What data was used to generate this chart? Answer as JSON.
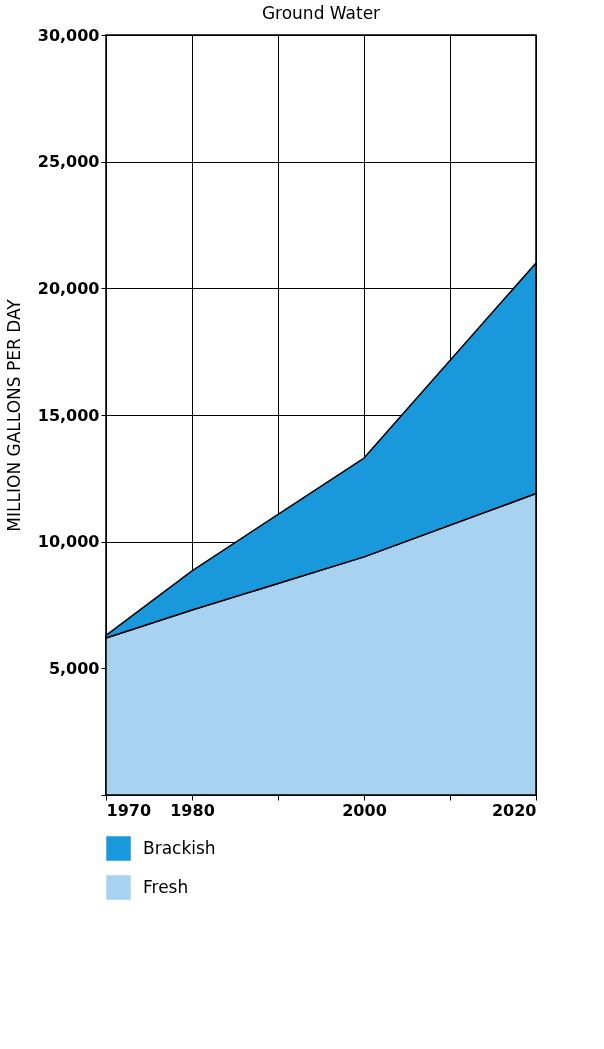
{
  "chart_data": {
    "type": "area",
    "title": "Ground Water",
    "ylabel": "MILLION GALLONS PER DAY",
    "stacked": true,
    "x": [
      1970,
      1980,
      2000,
      2020
    ],
    "series": [
      {
        "name": "Fresh",
        "color": "#a8d3f0",
        "values": [
          6200,
          7300,
          9400,
          11900
        ]
      },
      {
        "name": "Brackish",
        "color": "#1a98dc",
        "values": [
          100,
          1550,
          3900,
          9100
        ]
      }
    ],
    "xlim": [
      1970,
      2020
    ],
    "xticks": [
      1970,
      1980,
      {
        "value": 1990,
        "label": null
      },
      2000,
      {
        "value": 2010,
        "label": null
      },
      2020
    ],
    "ylim": [
      0,
      30000
    ],
    "yticks": [
      {
        "value": 0,
        "label": null
      },
      {
        "value": 5000,
        "label": "5,000"
      },
      {
        "value": 10000,
        "label": "10,000"
      },
      {
        "value": 15000,
        "label": "15,000"
      },
      {
        "value": 20000,
        "label": "20,000"
      },
      {
        "value": 25000,
        "label": "25,000"
      },
      {
        "value": 30000,
        "label": "30,000"
      }
    ],
    "grid": true,
    "legend": "bottom"
  }
}
